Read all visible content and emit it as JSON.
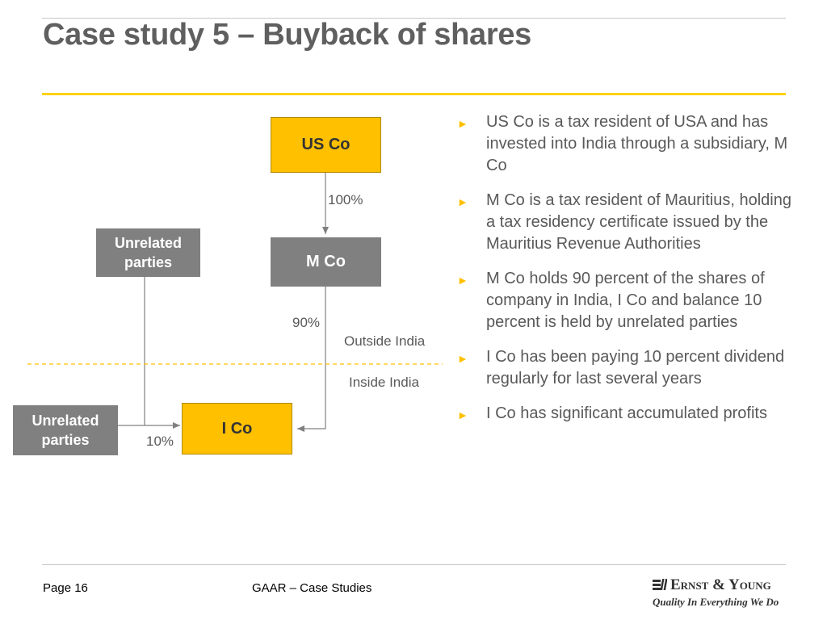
{
  "slide": {
    "title": "Case study 5 – Buyback of shares"
  },
  "diagram": {
    "us_co": "US Co",
    "m_co": "M Co",
    "i_co": "I Co",
    "unrelated_top": "Unrelated parties",
    "unrelated_left": "Unrelated parties",
    "pct_us_to_m": "100%",
    "pct_m_to_i": "90%",
    "pct_unrelated_to_i": "10%",
    "outside_india": "Outside India",
    "inside_india": "Inside India",
    "colors": {
      "yellow": "#ffc000",
      "gray": "#808080",
      "accent_line": "#ffd200"
    }
  },
  "bullets": [
    "US Co is a tax resident of USA and has invested into India through a subsidiary, M Co",
    "M Co is a tax resident of Mauritius, holding a tax residency certificate issued by the Mauritius Revenue Authorities",
    "M Co holds 90 percent of the shares of company in India, I Co and balance 10 percent is held by unrelated parties",
    "I Co has been paying 10 percent dividend regularly for last several years",
    "I Co has significant accumulated profits"
  ],
  "bullet_icon": "triangle-right-icon",
  "footer": {
    "page": "Page 16",
    "center": "GAAR – Case Studies",
    "logo_name": "Ernst & Young",
    "logo_tagline": "Quality In Everything We Do"
  }
}
